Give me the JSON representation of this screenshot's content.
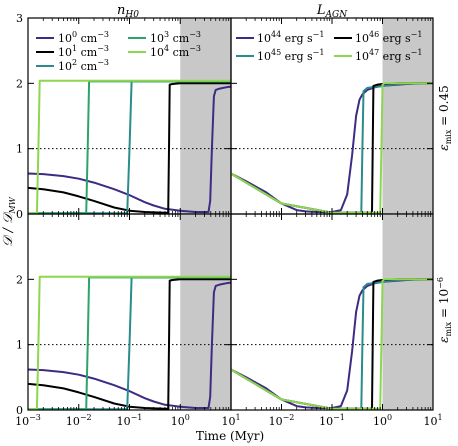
{
  "figure": {
    "y_axis_label": "𝒟 / 𝒟",
    "y_axis_label_sub": "MW",
    "x_axis_label": "Time (Myr)",
    "column_titles": [
      {
        "base": "n",
        "sub": "H0"
      },
      {
        "base": "L",
        "sub": "AGN"
      }
    ],
    "row_labels": [
      {
        "base": "ε",
        "sub": "mix",
        "rest": " = 0.45"
      },
      {
        "base": "ε",
        "sub": "mix",
        "rest": " = 10",
        "sup": "−6"
      }
    ],
    "legend_left": [
      {
        "coef": "10",
        "exp": "0",
        "unit": " cm",
        "uexp": "−3"
      },
      {
        "coef": "10",
        "exp": "1",
        "unit": " cm",
        "uexp": "−3"
      },
      {
        "coef": "10",
        "exp": "2",
        "unit": " cm",
        "uexp": "−3"
      },
      {
        "coef": "10",
        "exp": "3",
        "unit": " cm",
        "uexp": "−3"
      },
      {
        "coef": "10",
        "exp": "4",
        "unit": " cm",
        "uexp": "−3"
      }
    ],
    "legend_right": [
      {
        "coef": "10",
        "exp": "44",
        "unit": " erg s",
        "uexp": "−1"
      },
      {
        "coef": "10",
        "exp": "45",
        "unit": " erg s",
        "uexp": "−1"
      },
      {
        "coef": "10",
        "exp": "46",
        "unit": " erg s",
        "uexp": "−1"
      },
      {
        "coef": "10",
        "exp": "47",
        "unit": " erg s",
        "uexp": "−1"
      }
    ]
  },
  "chart_data": [
    {
      "type": "line",
      "panel": "top-left",
      "x_scale": "log",
      "xlim": [
        0.001,
        10
      ],
      "ylim": [
        0,
        3
      ],
      "grid": "dotted line at y=1",
      "shaded_x": [
        1,
        10
      ],
      "shade_color": "#c8c8c8",
      "series": [
        {
          "name": "10^0 cm^-3",
          "color": "#3f2a84",
          "x": [
            0.001,
            0.002,
            0.005,
            0.01,
            0.02,
            0.05,
            0.1,
            0.2,
            0.3,
            0.5,
            1,
            2,
            3,
            3.6,
            3.9,
            4.2,
            4.6,
            5,
            6,
            7,
            8,
            10
          ],
          "y": [
            0.62,
            0.61,
            0.58,
            0.54,
            0.48,
            0.38,
            0.29,
            0.18,
            0.13,
            0.08,
            0.05,
            0.03,
            0.03,
            0.03,
            0.2,
            1.0,
            1.8,
            1.9,
            1.92,
            1.93,
            1.94,
            1.95
          ]
        },
        {
          "name": "10^1 cm^-3",
          "color": "#000000",
          "x": [
            0.001,
            0.002,
            0.005,
            0.01,
            0.02,
            0.05,
            0.1,
            0.2,
            0.5,
            0.58,
            0.6,
            0.62,
            0.7,
            1,
            2,
            5,
            10
          ],
          "y": [
            0.4,
            0.38,
            0.33,
            0.27,
            0.2,
            0.1,
            0.05,
            0.03,
            0.02,
            0.02,
            1.0,
            1.98,
            1.99,
            2.0,
            2.0,
            2.0,
            2.0
          ]
        },
        {
          "name": "10^2 cm^-3",
          "color": "#2a8c8c",
          "x": [
            0.001,
            0.01,
            0.05,
            0.09,
            0.1,
            0.11,
            0.2,
            1,
            10
          ],
          "y": [
            0.01,
            0.01,
            0.01,
            0.01,
            1.0,
            2.03,
            2.03,
            2.03,
            2.03
          ]
        },
        {
          "name": "10^3 cm^-3",
          "color": "#2aa36d",
          "x": [
            0.001,
            0.01,
            0.014,
            0.015,
            0.016,
            0.1,
            1,
            10
          ],
          "y": [
            0.01,
            0.01,
            0.01,
            1.0,
            2.03,
            2.03,
            2.03,
            2.03
          ]
        },
        {
          "name": "10^4 cm^-3",
          "color": "#8fd650",
          "x": [
            0.001,
            0.0015,
            0.0016,
            0.0017,
            0.01,
            1,
            10
          ],
          "y": [
            0.01,
            0.01,
            1.0,
            2.04,
            2.04,
            2.04,
            2.04
          ]
        }
      ]
    },
    {
      "type": "line",
      "panel": "top-right",
      "x_scale": "log",
      "xlim": [
        0.001,
        10
      ],
      "ylim": [
        0,
        3
      ],
      "grid": "dotted line at y=1",
      "shaded_x": [
        1,
        10
      ],
      "shade_color": "#c8c8c8",
      "series": [
        {
          "name": "10^44 erg s^-1",
          "color": "#3f2a84",
          "x": [
            0.001,
            0.002,
            0.005,
            0.01,
            0.02,
            0.03,
            0.05,
            0.1,
            0.15,
            0.2,
            0.25,
            0.3,
            0.35,
            0.4,
            0.5,
            0.7,
            1,
            2,
            5,
            10
          ],
          "y": [
            0.62,
            0.5,
            0.33,
            0.16,
            0.06,
            0.04,
            0.03,
            0.03,
            0.06,
            0.3,
            0.9,
            1.5,
            1.75,
            1.83,
            1.9,
            1.94,
            1.96,
            1.98,
            2.0,
            2.0
          ]
        },
        {
          "name": "10^45 erg s^-1",
          "color": "#2a8c8c",
          "x": [
            0.001,
            0.01,
            0.1,
            0.3,
            0.38,
            0.4,
            0.42,
            0.5,
            1,
            2,
            10
          ],
          "y": [
            0.62,
            0.16,
            0.02,
            0.02,
            0.02,
            1.0,
            1.88,
            1.93,
            1.96,
            1.99,
            2.0
          ]
        },
        {
          "name": "10^46 erg s^-1",
          "color": "#000000",
          "x": [
            0.001,
            0.01,
            0.1,
            0.5,
            0.62,
            0.64,
            0.66,
            0.8,
            1,
            2,
            10
          ],
          "y": [
            0.62,
            0.16,
            0.02,
            0.02,
            0.02,
            1.0,
            1.96,
            1.98,
            1.99,
            2.0,
            2.0
          ]
        },
        {
          "name": "10^47 erg s^-1",
          "color": "#8fd650",
          "x": [
            0.001,
            0.01,
            0.1,
            0.5,
            0.9,
            0.95,
            1.0,
            1.1,
            2,
            10
          ],
          "y": [
            0.62,
            0.16,
            0.02,
            0.02,
            0.02,
            1.0,
            1.98,
            2.0,
            2.0,
            2.0
          ]
        }
      ]
    },
    {
      "type": "line",
      "panel": "bottom-left",
      "x_scale": "log",
      "xlim": [
        0.001,
        10
      ],
      "ylim": [
        0,
        3
      ],
      "grid": "dotted line at y=1",
      "shaded_x": [
        1,
        10
      ],
      "shade_color": "#c8c8c8",
      "series": [
        {
          "name": "10^0 cm^-3",
          "color": "#3f2a84",
          "x": [
            0.001,
            0.002,
            0.005,
            0.01,
            0.02,
            0.05,
            0.1,
            0.2,
            0.3,
            0.5,
            1,
            2,
            3,
            3.6,
            3.9,
            4.2,
            4.6,
            5,
            6,
            7,
            8,
            10
          ],
          "y": [
            0.62,
            0.61,
            0.58,
            0.54,
            0.48,
            0.38,
            0.29,
            0.18,
            0.13,
            0.08,
            0.05,
            0.03,
            0.03,
            0.03,
            0.2,
            1.0,
            1.8,
            1.9,
            1.92,
            1.93,
            1.94,
            1.95
          ]
        },
        {
          "name": "10^1 cm^-3",
          "color": "#000000",
          "x": [
            0.001,
            0.002,
            0.005,
            0.01,
            0.02,
            0.05,
            0.1,
            0.2,
            0.5,
            0.58,
            0.6,
            0.62,
            0.7,
            1,
            2,
            5,
            10
          ],
          "y": [
            0.4,
            0.38,
            0.33,
            0.27,
            0.2,
            0.1,
            0.05,
            0.03,
            0.02,
            0.02,
            1.0,
            1.98,
            1.99,
            2.0,
            2.0,
            2.0,
            2.0
          ]
        },
        {
          "name": "10^2 cm^-3",
          "color": "#2a8c8c",
          "x": [
            0.001,
            0.01,
            0.05,
            0.09,
            0.1,
            0.11,
            0.2,
            1,
            10
          ],
          "y": [
            0.01,
            0.01,
            0.01,
            0.01,
            1.0,
            2.03,
            2.03,
            2.03,
            2.03
          ]
        },
        {
          "name": "10^3 cm^-3",
          "color": "#2aa36d",
          "x": [
            0.001,
            0.01,
            0.014,
            0.015,
            0.016,
            0.1,
            1,
            10
          ],
          "y": [
            0.01,
            0.01,
            0.01,
            1.0,
            2.03,
            2.03,
            2.03,
            2.03
          ]
        },
        {
          "name": "10^4 cm^-3",
          "color": "#8fd650",
          "x": [
            0.001,
            0.0015,
            0.0016,
            0.0017,
            0.01,
            1,
            10
          ],
          "y": [
            0.01,
            0.01,
            1.0,
            2.04,
            2.04,
            2.04,
            2.04
          ]
        }
      ]
    },
    {
      "type": "line",
      "panel": "bottom-right",
      "x_scale": "log",
      "xlim": [
        0.001,
        10
      ],
      "ylim": [
        0,
        3
      ],
      "grid": "dotted line at y=1",
      "shaded_x": [
        1,
        10
      ],
      "shade_color": "#c8c8c8",
      "series": [
        {
          "name": "10^44 erg s^-1",
          "color": "#3f2a84",
          "x": [
            0.001,
            0.002,
            0.005,
            0.01,
            0.02,
            0.03,
            0.05,
            0.1,
            0.15,
            0.2,
            0.25,
            0.3,
            0.35,
            0.4,
            0.5,
            0.7,
            1,
            2,
            5,
            10
          ],
          "y": [
            0.62,
            0.5,
            0.33,
            0.16,
            0.06,
            0.04,
            0.03,
            0.03,
            0.06,
            0.3,
            0.9,
            1.5,
            1.75,
            1.83,
            1.9,
            1.94,
            1.96,
            1.98,
            2.0,
            2.0
          ]
        },
        {
          "name": "10^45 erg s^-1",
          "color": "#2a8c8c",
          "x": [
            0.001,
            0.01,
            0.1,
            0.3,
            0.38,
            0.4,
            0.42,
            0.5,
            1,
            2,
            10
          ],
          "y": [
            0.62,
            0.16,
            0.02,
            0.02,
            0.02,
            1.0,
            1.88,
            1.93,
            1.96,
            1.99,
            2.0
          ]
        },
        {
          "name": "10^46 erg s^-1",
          "color": "#000000",
          "x": [
            0.001,
            0.01,
            0.1,
            0.5,
            0.62,
            0.64,
            0.66,
            0.8,
            1,
            2,
            10
          ],
          "y": [
            0.62,
            0.16,
            0.02,
            0.02,
            0.02,
            1.0,
            1.96,
            1.98,
            1.99,
            2.0,
            2.0
          ]
        },
        {
          "name": "10^47 erg s^-1",
          "color": "#8fd650",
          "x": [
            0.001,
            0.01,
            0.1,
            0.5,
            0.9,
            0.95,
            1.0,
            1.1,
            2,
            10
          ],
          "y": [
            0.62,
            0.16,
            0.02,
            0.02,
            0.02,
            1.0,
            1.98,
            2.0,
            2.0,
            2.0
          ]
        }
      ]
    }
  ]
}
